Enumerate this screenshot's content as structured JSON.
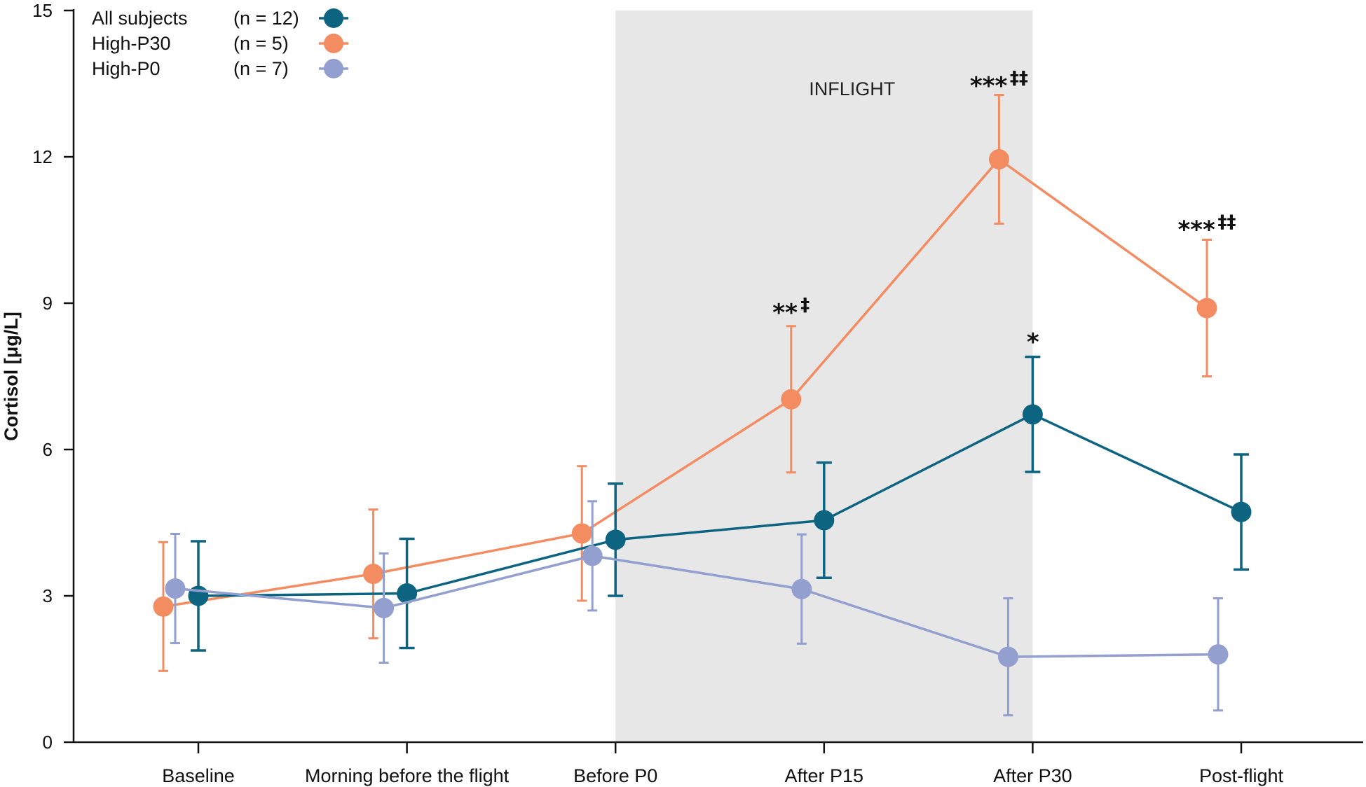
{
  "chart_data": {
    "type": "line",
    "title": "",
    "xlabel": "",
    "ylabel": "Cortisol [μg/L]",
    "ylim": [
      0,
      15
    ],
    "yticks": [
      0,
      3,
      6,
      9,
      12,
      15
    ],
    "categories": [
      "Baseline",
      "Morning before the flight",
      "Before P0",
      "After P15",
      "After P30",
      "Post-flight"
    ],
    "shaded_region": {
      "label": "INFLIGHT",
      "from_category": "Before P0",
      "to_category": "After P30"
    },
    "series": [
      {
        "name": "All subjects",
        "n_label": "(n = 12)",
        "color": "#0d6480",
        "values": [
          3.0,
          3.05,
          4.15,
          4.55,
          6.72,
          4.72
        ],
        "errors": [
          1.12,
          1.12,
          1.15,
          1.18,
          1.18,
          1.18
        ]
      },
      {
        "name": "High-P30",
        "n_label": "(n = 5)",
        "color": "#f48c62",
        "values": [
          2.78,
          3.45,
          4.28,
          7.03,
          11.95,
          8.9
        ],
        "errors": [
          1.32,
          1.32,
          1.38,
          1.5,
          1.32,
          1.4
        ]
      },
      {
        "name": "High-P0",
        "n_label": "(n = 7)",
        "color": "#929fcf",
        "values": [
          3.15,
          2.75,
          3.82,
          3.14,
          1.75,
          1.8
        ],
        "errors": [
          1.12,
          1.12,
          1.12,
          1.12,
          1.2,
          1.15
        ]
      }
    ],
    "annotations": [
      {
        "category": "After P15",
        "stars": "**",
        "daggers": "‡",
        "y": 8.9
      },
      {
        "category": "After P30",
        "stars": "***",
        "daggers": "‡‡",
        "y": 13.55
      },
      {
        "category": "Post-flight",
        "stars": "***",
        "daggers": "‡‡",
        "y": 10.6
      },
      {
        "category": "After P30",
        "stars": "*",
        "daggers": "",
        "y": 8.3
      }
    ],
    "legend_position": "top-left"
  }
}
